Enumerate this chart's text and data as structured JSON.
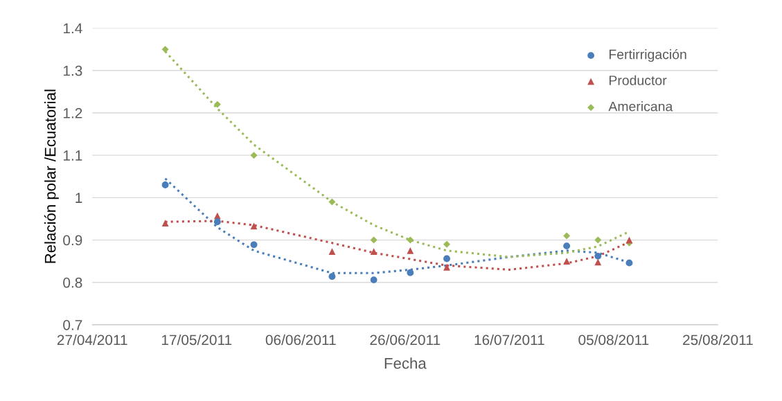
{
  "chart_data": {
    "type": "scatter",
    "xlabel": "Fecha",
    "ylabel": "Relación polar /Ecuatorial",
    "x": [
      "2011-05-11",
      "2011-05-21",
      "2011-05-28",
      "2011-06-12",
      "2011-06-20",
      "2011-06-27",
      "2011-07-04",
      "2011-07-27",
      "2011-08-02",
      "2011-08-08"
    ],
    "series": [
      {
        "name": "Fertirrigación",
        "color": "#4a7ebb",
        "marker": "circle",
        "values": [
          1.03,
          0.943,
          0.889,
          0.814,
          0.806,
          0.823,
          0.856,
          0.886,
          0.862,
          0.846
        ]
      },
      {
        "name": "Productor",
        "color": "#c0504d",
        "marker": "triangle",
        "values": [
          0.94,
          0.957,
          0.933,
          0.873,
          0.873,
          0.875,
          0.836,
          0.85,
          0.848,
          0.9
        ]
      },
      {
        "name": "Americana",
        "color": "#9bbb59",
        "marker": "diamond",
        "values": [
          1.35,
          1.22,
          1.1,
          0.99,
          0.9,
          0.9,
          0.89,
          0.91,
          0.9,
          0.893
        ]
      },
      {
        "type": "line",
        "color": "#4a7ebb",
        "line_style": "dotted",
        "x": [
          "2011-05-11",
          "2011-05-21",
          "2011-05-28",
          "2011-06-12",
          "2011-06-20",
          "2011-06-27",
          "2011-07-04",
          "2011-07-16",
          "2011-07-27",
          "2011-08-02",
          "2011-08-08"
        ],
        "values": [
          1.045,
          0.93,
          0.875,
          0.822,
          0.822,
          0.83,
          0.84,
          0.86,
          0.875,
          0.87,
          0.847
        ]
      },
      {
        "type": "line",
        "color": "#c0504d",
        "line_style": "dotted",
        "x": [
          "2011-05-11",
          "2011-05-21",
          "2011-05-28",
          "2011-06-12",
          "2011-06-20",
          "2011-06-27",
          "2011-07-04",
          "2011-07-16",
          "2011-07-27",
          "2011-08-02",
          "2011-08-08"
        ],
        "values": [
          0.943,
          0.945,
          0.935,
          0.893,
          0.87,
          0.855,
          0.84,
          0.83,
          0.845,
          0.862,
          0.895
        ]
      },
      {
        "type": "line",
        "color": "#9bbb59",
        "line_style": "dotted",
        "x": [
          "2011-05-11",
          "2011-05-21",
          "2011-05-28",
          "2011-06-12",
          "2011-06-20",
          "2011-06-27",
          "2011-07-04",
          "2011-07-16",
          "2011-07-27",
          "2011-08-02",
          "2011-08-08"
        ],
        "values": [
          1.345,
          1.21,
          1.125,
          0.99,
          0.935,
          0.9,
          0.875,
          0.86,
          0.87,
          0.885,
          0.92
        ]
      }
    ],
    "xlim": [
      "2011-04-27",
      "2011-08-25"
    ],
    "xticks": [
      {
        "value": "2011-04-27",
        "label": "27/04/2011"
      },
      {
        "value": "2011-05-17",
        "label": "17/05/2011"
      },
      {
        "value": "2011-06-06",
        "label": "06/06/2011"
      },
      {
        "value": "2011-06-26",
        "label": "26/06/2011"
      },
      {
        "value": "2011-07-16",
        "label": "16/07/2011"
      },
      {
        "value": "2011-08-05",
        "label": "05/08/2011"
      },
      {
        "value": "2011-08-25",
        "label": "25/08/2011"
      }
    ],
    "ylim": [
      0.7,
      1.4
    ],
    "yticks": [
      0.7,
      0.8,
      0.9,
      1,
      1.1,
      1.2,
      1.3,
      1.4
    ],
    "grid": "y",
    "legend": "top right"
  }
}
